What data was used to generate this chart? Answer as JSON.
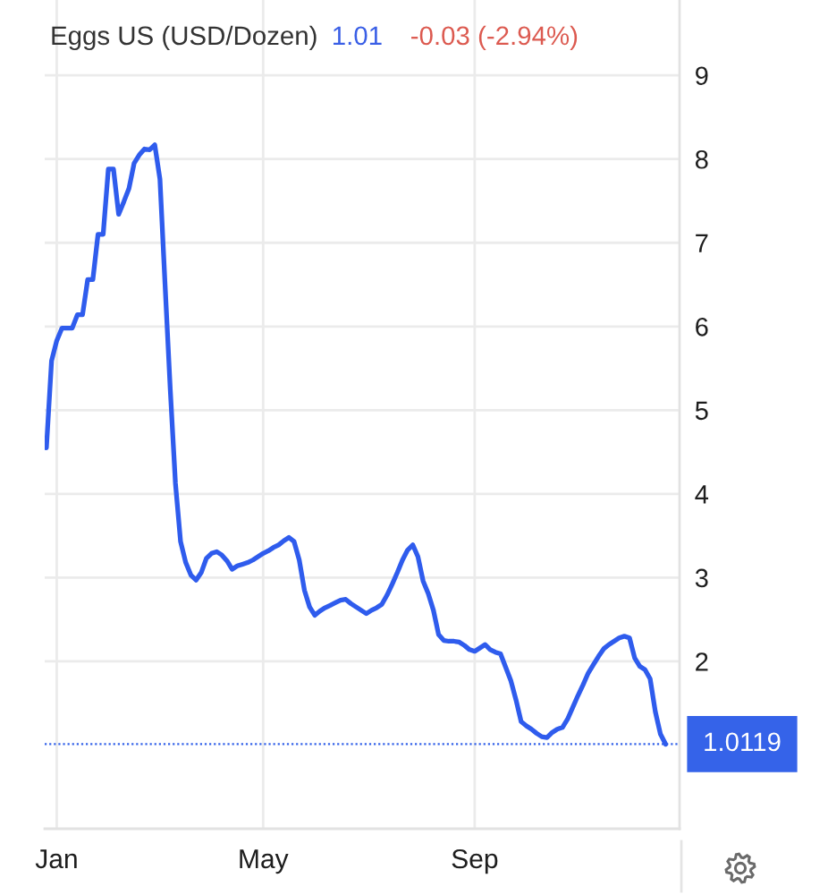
{
  "chart_data": {
    "type": "line",
    "title": "Eggs US (USD/Dozen)",
    "annotations": [
      "1.01",
      "-0.03 (-2.94%)"
    ],
    "categories": [
      null,
      null,
      "Jan",
      null,
      null,
      null,
      null,
      null,
      null,
      null,
      null,
      null,
      null,
      null,
      null,
      null,
      null,
      null,
      null,
      null,
      null,
      null,
      null,
      null,
      null,
      null,
      null,
      null,
      null,
      null,
      null,
      null,
      null,
      null,
      null,
      null,
      null,
      null,
      null,
      null,
      null,
      null,
      "May",
      null,
      null,
      null,
      null,
      null,
      null,
      null,
      null,
      null,
      null,
      null,
      null,
      null,
      null,
      null,
      null,
      null,
      null,
      null,
      null,
      null,
      null,
      null,
      null,
      null,
      null,
      null,
      null,
      null,
      null,
      null,
      null,
      null,
      null,
      null,
      null,
      null,
      null,
      null,
      null,
      "Sep",
      null,
      null,
      null,
      null,
      null,
      null,
      null,
      null,
      null,
      null,
      null,
      null,
      null,
      null,
      null,
      null,
      null,
      null,
      null,
      null,
      null,
      null,
      null,
      null,
      null,
      null,
      null,
      null,
      null,
      null,
      null,
      null,
      null,
      null,
      null,
      null,
      null
    ],
    "series": [
      {
        "color": "#2f5ced",
        "values": [
          4.55,
          5.59,
          5.83,
          5.98,
          5.98,
          5.98,
          6.14,
          6.14,
          6.56,
          6.56,
          7.1,
          7.1,
          7.88,
          7.88,
          7.34,
          7.49,
          7.65,
          7.95,
          8.05,
          8.12,
          8.11,
          8.17,
          7.76,
          6.49,
          5.25,
          4.13,
          3.43,
          3.18,
          3.03,
          2.97,
          3.06,
          3.23,
          3.29,
          3.31,
          3.27,
          3.2,
          3.1,
          3.14,
          3.16,
          3.18,
          3.21,
          3.25,
          3.29,
          3.32,
          3.36,
          3.39,
          3.44,
          3.48,
          3.43,
          3.21,
          2.85,
          2.65,
          2.55,
          2.6,
          2.64,
          2.67,
          2.7,
          2.73,
          2.74,
          2.69,
          2.65,
          2.61,
          2.57,
          2.61,
          2.64,
          2.68,
          2.79,
          2.92,
          3.06,
          3.21,
          3.33,
          3.39,
          3.25,
          2.96,
          2.81,
          2.61,
          2.32,
          2.25,
          2.24,
          2.24,
          2.23,
          2.19,
          2.14,
          2.12,
          2.16,
          2.2,
          2.14,
          2.11,
          2.09,
          1.93,
          1.77,
          1.54,
          1.28,
          1.23,
          1.19,
          1.14,
          1.1,
          1.09,
          1.15,
          1.19,
          1.21,
          1.31,
          1.45,
          1.59,
          1.72,
          1.86,
          1.96,
          2.06,
          2.15,
          2.2,
          2.24,
          2.28,
          2.3,
          2.28,
          2.04,
          1.94,
          1.9,
          1.79,
          1.4,
          1.13,
          1.01
        ]
      }
    ],
    "ylim": [
      0,
      9.9
    ],
    "yticks": [
      2,
      3,
      4,
      5,
      6,
      7,
      8,
      9
    ],
    "grid": true,
    "ref_lines": [
      {
        "axis": "y",
        "value": 1.0119,
        "label": "1.0119",
        "color": "#3563e9",
        "line_style": "dotted"
      }
    ]
  }
}
